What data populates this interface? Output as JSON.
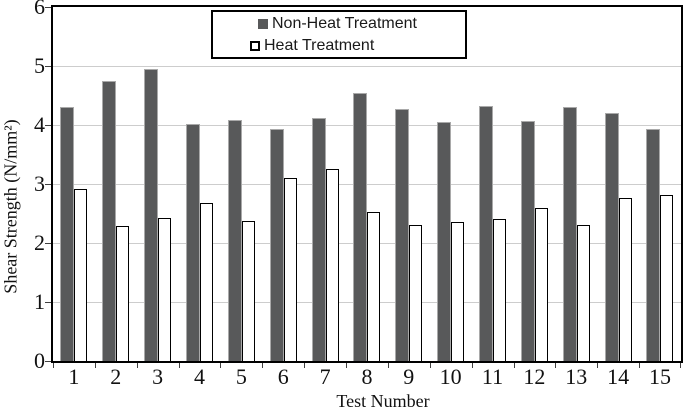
{
  "chart_data": {
    "type": "bar",
    "title": "",
    "xlabel": "Test Number",
    "ylabel": "Shear Strength (N/mm²)",
    "ylim": [
      0,
      6
    ],
    "yticks": [
      0,
      1,
      2,
      3,
      4,
      5,
      6
    ],
    "gridlines_at": [
      1,
      2,
      3,
      4,
      5
    ],
    "grid": "horizontal",
    "legend_position": "top-center-inside",
    "categories": [
      "1",
      "2",
      "3",
      "4",
      "5",
      "6",
      "7",
      "8",
      "9",
      "10",
      "11",
      "12",
      "13",
      "14",
      "15"
    ],
    "series": [
      {
        "name": "Non-Heat Treatment",
        "color": "#58595a",
        "values": [
          4.3,
          4.75,
          4.95,
          4.02,
          4.08,
          3.93,
          4.12,
          4.55,
          4.27,
          4.05,
          4.32,
          4.07,
          4.31,
          4.2,
          3.93
        ]
      },
      {
        "name": "Heat Treatment",
        "color": "#ffffff",
        "values": [
          2.91,
          2.28,
          2.43,
          2.67,
          2.37,
          3.1,
          3.26,
          2.53,
          2.31,
          2.35,
          2.4,
          2.59,
          2.31,
          2.76,
          2.81
        ]
      }
    ],
    "colors": {
      "nonheat_bar": "#58595a",
      "nonheat_bar_edge": "#a9a9a9",
      "heat_bar_fill": "#ffffff",
      "heat_bar_edge": "#000000",
      "gridline": "#cdcdcd",
      "plot_border": "#000000",
      "text": "#111111"
    }
  }
}
